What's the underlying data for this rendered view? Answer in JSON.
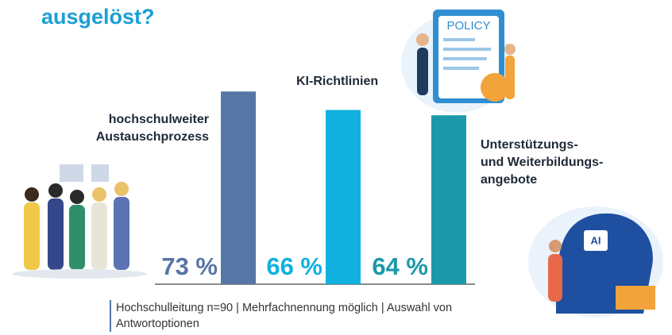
{
  "chart_data": {
    "type": "bar",
    "title": "ausgelöst?",
    "categories": [
      "hochschulweiter\nAustauschprozess",
      "KI-Richtlinien",
      "Unterstützungs-\nund Weiterbildungs-\nangebote"
    ],
    "values": [
      73,
      66,
      64
    ],
    "value_labels": [
      "73 %",
      "66 %",
      "64 %"
    ],
    "colors": [
      "#5676a5",
      "#10b1de",
      "#1b99a9"
    ],
    "ylim": [
      0,
      80
    ],
    "note": "Hochschulleitung n=90 | Mehrfachnennung möglich | Auswahl von Antwortoptionen"
  }
}
